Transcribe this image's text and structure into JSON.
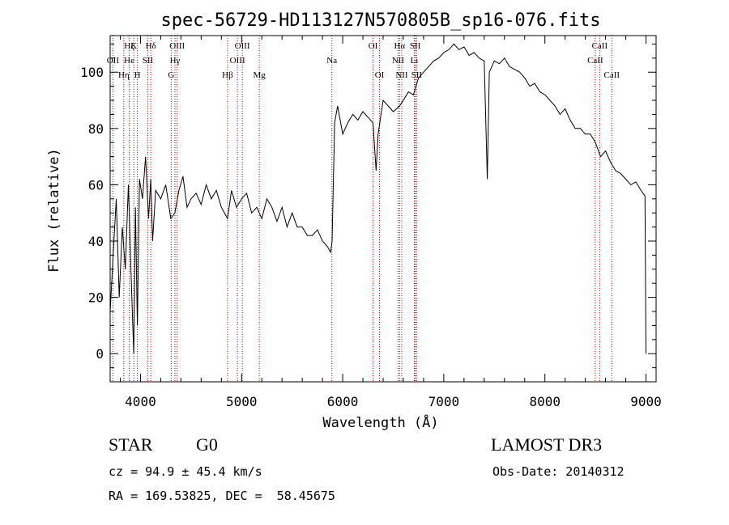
{
  "chart_data": {
    "type": "line",
    "title": "spec-56729-HD113127N570805B_sp16-076.fits",
    "xlabel": "Wavelength (Å)",
    "ylabel": "Flux (relative)",
    "xlim": [
      3700,
      9100
    ],
    "ylim": [
      -10,
      113
    ],
    "xticks": [
      4000,
      5000,
      6000,
      7000,
      8000,
      9000
    ],
    "yticks": [
      0,
      20,
      40,
      60,
      80,
      100
    ],
    "grid": false,
    "legend": "none",
    "line_color": "#000000",
    "marker_line_color": "#c00000",
    "series": [
      {
        "x": [
          3700,
          3730,
          3760,
          3790,
          3820,
          3850,
          3880,
          3910,
          3933,
          3950,
          3969,
          3990,
          4020,
          4050,
          4080,
          4101,
          4120,
          4150,
          4200,
          4250,
          4300,
          4340,
          4380,
          4420,
          4460,
          4500,
          4550,
          4600,
          4650,
          4700,
          4750,
          4800,
          4861,
          4900,
          4950,
          5000,
          5050,
          5100,
          5150,
          5200,
          5250,
          5300,
          5350,
          5400,
          5450,
          5500,
          5550,
          5600,
          5650,
          5700,
          5750,
          5800,
          5850,
          5880,
          5895,
          5920,
          5950,
          6000,
          6050,
          6100,
          6150,
          6200,
          6250,
          6300,
          6330,
          6350,
          6400,
          6450,
          6500,
          6563,
          6600,
          6650,
          6700,
          6750,
          6800,
          6850,
          6900,
          6950,
          7000,
          7050,
          7100,
          7150,
          7200,
          7250,
          7300,
          7350,
          7400,
          7430,
          7450,
          7500,
          7550,
          7600,
          7650,
          7700,
          7750,
          7800,
          7850,
          7900,
          7950,
          8000,
          8050,
          8100,
          8150,
          8200,
          8250,
          8300,
          8350,
          8400,
          8450,
          8500,
          8550,
          8600,
          8650,
          8700,
          8750,
          8800,
          8850,
          8900,
          8950,
          8990,
          9000
        ],
        "values": [
          15,
          35,
          55,
          20,
          45,
          30,
          60,
          25,
          0,
          52,
          10,
          62,
          55,
          70,
          48,
          62,
          40,
          58,
          55,
          60,
          48,
          50,
          58,
          63,
          52,
          55,
          57,
          53,
          60,
          55,
          58,
          52,
          48,
          58,
          52,
          55,
          57,
          50,
          52,
          48,
          55,
          52,
          47,
          52,
          45,
          50,
          45,
          45,
          42,
          42,
          44,
          40,
          38,
          36,
          40,
          82,
          88,
          78,
          82,
          85,
          83,
          86,
          84,
          82,
          65,
          78,
          90,
          88,
          86,
          88,
          90,
          93,
          92,
          98,
          100,
          102,
          104,
          105,
          107,
          108,
          110,
          108,
          109,
          106,
          107,
          105,
          104,
          62,
          100,
          104,
          103,
          105,
          102,
          101,
          100,
          98,
          95,
          96,
          93,
          92,
          90,
          88,
          85,
          87,
          83,
          80,
          80,
          78,
          78,
          75,
          70,
          72,
          68,
          65,
          64,
          62,
          60,
          61,
          58,
          56,
          0
        ]
      }
    ],
    "spectral_lines": [
      {
        "label": "Hζ",
        "x": 3889,
        "row": 1
      },
      {
        "label": "OII",
        "x": 3727,
        "row": 2
      },
      {
        "label": "Hη",
        "x": 3835,
        "row": 3
      },
      {
        "label": "K",
        "x": 3934,
        "row": 1
      },
      {
        "label": "He",
        "x": 3889,
        "row": 2
      },
      {
        "label": "H",
        "x": 3969,
        "row": 3
      },
      {
        "label": "Hδ",
        "x": 4102,
        "row": 1
      },
      {
        "label": "SII",
        "x": 4072,
        "row": 2
      },
      {
        "label": "OIII",
        "x": 4363,
        "row": 1
      },
      {
        "label": "Hγ",
        "x": 4341,
        "row": 2
      },
      {
        "label": "G",
        "x": 4304,
        "row": 3
      },
      {
        "label": "Hβ",
        "x": 4861,
        "row": 3
      },
      {
        "label": "OIII",
        "x": 5007,
        "row": 1
      },
      {
        "label": "OIII",
        "x": 4959,
        "row": 2
      },
      {
        "label": "Mg",
        "x": 5175,
        "row": 3
      },
      {
        "label": "Na",
        "x": 5893,
        "row": 2
      },
      {
        "label": "OI",
        "x": 6300,
        "row": 1
      },
      {
        "label": "OI",
        "x": 6364,
        "row": 3
      },
      {
        "label": "Hα",
        "x": 6563,
        "row": 1
      },
      {
        "label": "NII",
        "x": 6548,
        "row": 2
      },
      {
        "label": "NII",
        "x": 6584,
        "row": 3
      },
      {
        "label": "SII",
        "x": 6717,
        "row": 1
      },
      {
        "label": "Li",
        "x": 6708,
        "row": 2
      },
      {
        "label": "SII",
        "x": 6731,
        "row": 3
      },
      {
        "label": "CaII",
        "x": 8542,
        "row": 1
      },
      {
        "label": "CaII",
        "x": 8498,
        "row": 2
      },
      {
        "label": "CaII",
        "x": 8662,
        "row": 3
      }
    ]
  },
  "info": {
    "object_class": "STAR",
    "subclass": "G0",
    "survey": "LAMOST DR3",
    "cz": "cz = 94.9 ± 45.4 km/s",
    "obs_date": "Obs-Date: 20140312",
    "coords": "RA = 169.53825, DEC =  58.45675"
  }
}
